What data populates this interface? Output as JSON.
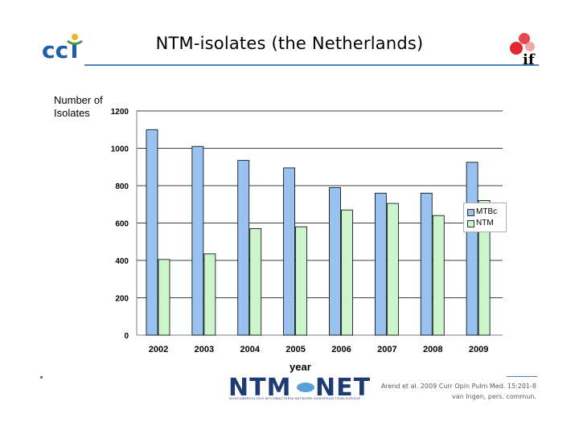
{
  "slide": {
    "title": "NTM-isolates (the Netherlands)",
    "reference_line1": "Arend et al. 2009 Curr Opin Pulm Med. 15:201-8",
    "reference_line2": "van Ingen, pers. commun.",
    "logos": {
      "left": "cci",
      "right": "if",
      "bottom": "NTM-NET",
      "bottom_subtitle": "NONTUBERCULOUS MYCOBACTERIA NETWORK EUROPEAN TRIALSGROUP"
    }
  },
  "chart_data": {
    "type": "bar",
    "ylabel_line1": "Number of",
    "ylabel_line2": "Isolates",
    "xlabel": "year",
    "categories": [
      "2002",
      "2003",
      "2004",
      "2005",
      "2006",
      "2007",
      "2008",
      "2009"
    ],
    "series": [
      {
        "name": "MTBc",
        "values": [
          1100,
          1010,
          935,
          895,
          790,
          760,
          760,
          925
        ],
        "color": "#99c2f0"
      },
      {
        "name": "NTM",
        "values": [
          405,
          435,
          570,
          580,
          670,
          705,
          640,
          720
        ],
        "color": "#ccf5cc"
      }
    ],
    "ylim": [
      0,
      1200
    ],
    "yticks": [
      0,
      200,
      400,
      600,
      800,
      1000,
      1200
    ],
    "grid": true,
    "legend_position": "right"
  }
}
